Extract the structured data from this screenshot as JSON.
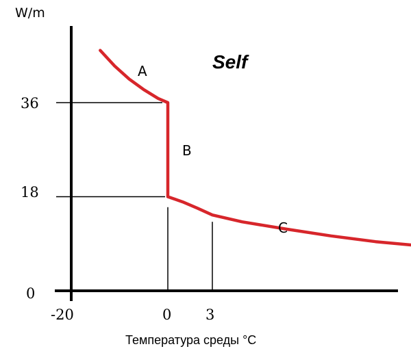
{
  "chart_data": {
    "type": "line",
    "title": "Self",
    "ylabel": "W/m",
    "xlabel": "Температура среды °С",
    "y_ticks": [
      {
        "value": 36,
        "label": "36"
      },
      {
        "value": 18,
        "label": "18"
      },
      {
        "value": 0,
        "label": "0"
      }
    ],
    "x_ticks": [
      {
        "value": -20,
        "label": "-20"
      },
      {
        "value": 0,
        "label": "0"
      },
      {
        "value": 3,
        "label": "3"
      }
    ],
    "series": [
      {
        "color": "#d7262b",
        "points": [
          [
            -14,
            46
          ],
          [
            -11,
            43
          ],
          [
            -8,
            40.5
          ],
          [
            -5,
            38.5
          ],
          [
            -2,
            36.8
          ],
          [
            0,
            36
          ],
          [
            0,
            18
          ],
          [
            1,
            17
          ],
          [
            2,
            15.8
          ],
          [
            3,
            14.5
          ],
          [
            5,
            13.2
          ],
          [
            8,
            11.8
          ],
          [
            11,
            10.5
          ],
          [
            14,
            9.4
          ],
          [
            17,
            8.6
          ],
          [
            20,
            7.9
          ],
          [
            23,
            7.5
          ],
          [
            26,
            7.2
          ]
        ]
      }
    ],
    "reference_lines": [
      {
        "type": "horizontal",
        "value": 36
      },
      {
        "type": "horizontal",
        "value": 18
      },
      {
        "type": "vertical",
        "value": 0
      },
      {
        "type": "vertical",
        "value": 3
      }
    ],
    "segment_labels": [
      {
        "text": "A"
      },
      {
        "text": "B"
      },
      {
        "text": "C"
      }
    ]
  }
}
